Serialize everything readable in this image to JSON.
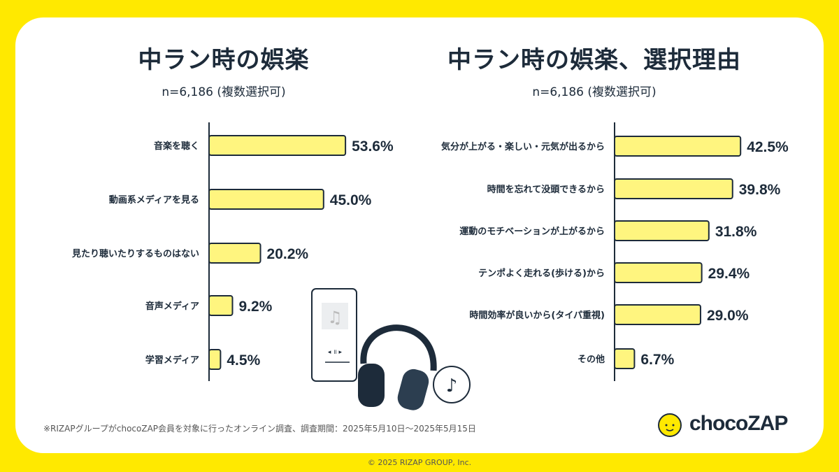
{
  "colors": {
    "background": "#FFE900",
    "bar_fill": "#FFF57F",
    "bar_stroke": "#1d2b3a",
    "text": "#1d2b3a"
  },
  "chart_data": [
    {
      "type": "bar",
      "orientation": "horizontal",
      "title": "中ラン時の娯楽",
      "subtitle": "n=6,186 (複数選択可)",
      "categories": [
        "音楽を聴く",
        "動画系メディアを見る",
        "見たり聴いたりするものはない",
        "音声メディア",
        "学習メディア"
      ],
      "values": [
        53.6,
        45.0,
        20.2,
        9.2,
        4.5
      ],
      "unit": "%",
      "value_labels": [
        "53.6%",
        "45.0%",
        "20.2%",
        "9.2%",
        "4.5%"
      ]
    },
    {
      "type": "bar",
      "orientation": "horizontal",
      "title": "中ラン時の娯楽、選択理由",
      "subtitle": "n=6,186 (複数選択可)",
      "categories": [
        "気分が上がる・楽しい・元気が出るから",
        "時間を忘れて没頭できるから",
        "運動のモチベーションが上がるから",
        "テンポよく走れる(歩ける)から",
        "時間効率が良いから(タイパ重視)",
        "その他"
      ],
      "values": [
        42.5,
        39.8,
        31.8,
        29.4,
        29.0,
        6.7
      ],
      "unit": "%",
      "value_labels": [
        "42.5%",
        "39.8%",
        "31.8%",
        "29.4%",
        "29.0%",
        "6.7%"
      ]
    }
  ],
  "footnote": "※RIZAPグループがchocoZAP会員を対象に行ったオンライン調査、調査期間：2025年5月10日～2025年5月15日",
  "logo": "chocoZAP",
  "copyright": "© 2025 RIZAP GROUP, Inc.",
  "illustration": {
    "icons": [
      "music-player-icon",
      "headphones-icon",
      "music-note-bubble-icon"
    ]
  }
}
